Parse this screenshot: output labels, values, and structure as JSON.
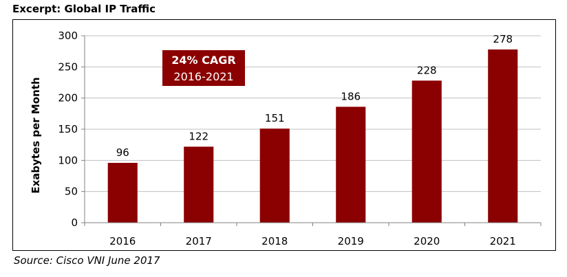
{
  "title": "Excerpt: Global IP Traffic",
  "source": "Source: Cisco VNI June 2017",
  "colors": {
    "bar": "#8b0000",
    "grid": "#bfbfbf",
    "axis": "#808080",
    "badge": "#8b0000"
  },
  "chart_data": {
    "type": "bar",
    "categories": [
      "2016",
      "2017",
      "2018",
      "2019",
      "2020",
      "2021"
    ],
    "values": [
      96,
      122,
      151,
      186,
      228,
      278
    ],
    "data_labels": [
      "96",
      "122",
      "151",
      "186",
      "228",
      "278"
    ],
    "title": "Excerpt: Global IP Traffic",
    "xlabel": "",
    "ylabel": "Exabytes per Month",
    "ylim": [
      0,
      300
    ],
    "yticks": [
      0,
      50,
      100,
      150,
      200,
      250,
      300
    ],
    "ytick_labels": [
      "0",
      "50",
      "100",
      "150",
      "200",
      "250",
      "300"
    ],
    "grid": true,
    "annotation": {
      "line1": "24% CAGR",
      "line2": "2016-2021"
    }
  }
}
